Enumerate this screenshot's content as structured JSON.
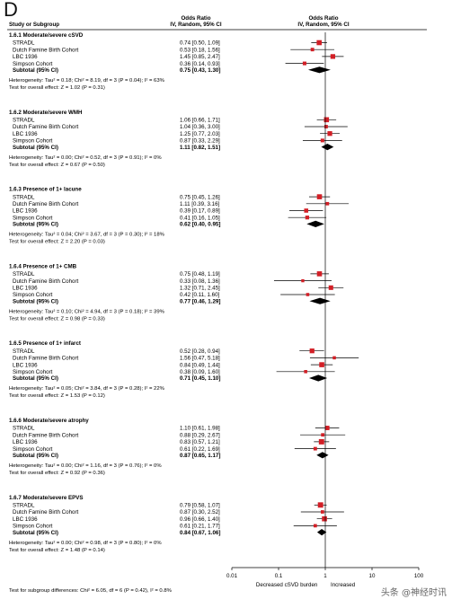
{
  "panel_label": "D",
  "header": {
    "col1_line1": "",
    "col1_line2": "Study or Subgroup",
    "col2_line1": "Odds Ratio",
    "col2_line2": "IV, Random, 95% CI",
    "col3_line1": "Odds Ratio",
    "col3_line2": "IV, Random, 95% CI"
  },
  "chart_data": {
    "type": "forest",
    "x_scale": "log",
    "xlim": [
      0.01,
      100
    ],
    "x_ticks": [
      "0.01",
      "0.1",
      "1",
      "10",
      "100"
    ],
    "x_tick_values": [
      0.01,
      0.1,
      1,
      10,
      100
    ],
    "xlabel_left": "Decreased cSVD burden",
    "xlabel_right": "Increased",
    "groups": [
      {
        "title": "1.6.1 Moderate/severe cSVD",
        "studies": [
          {
            "name": "STRADL",
            "text": "0.74 [0.50, 1.09]",
            "or": 0.74,
            "lo": 0.5,
            "hi": 1.09,
            "w": 1.0
          },
          {
            "name": "Dutch Famine Birth Cohort",
            "text": "0.53 [0.18, 1.56]",
            "or": 0.53,
            "lo": 0.18,
            "hi": 1.56,
            "w": 0.5
          },
          {
            "name": "LBC 1936",
            "text": "1.45 [0.85, 2.47]",
            "or": 1.45,
            "lo": 0.85,
            "hi": 2.47,
            "w": 0.9
          },
          {
            "name": "Simpson Cohort",
            "text": "0.36 [0.14, 0.93]",
            "or": 0.36,
            "lo": 0.14,
            "hi": 0.93,
            "w": 0.55
          }
        ],
        "subtotal": {
          "name": "Subtotal (95% CI)",
          "text": "0.75 [0.43, 1.30]",
          "or": 0.75,
          "lo": 0.43,
          "hi": 1.3
        },
        "heterogeneity": "Heterogeneity: Tau² = 0.18; Chi² = 8.19, df = 3 (P = 0.04); I² = 63%",
        "overall": "Test for overall effect: Z = 1.02 (P = 0.31)"
      },
      {
        "title": "1.6.2 Moderate/severe WMH",
        "studies": [
          {
            "name": "STRADL",
            "text": "1.06 [0.66, 1.71]",
            "or": 1.06,
            "lo": 0.66,
            "hi": 1.71,
            "w": 1.0
          },
          {
            "name": "Dutch Famine Birth Cohort",
            "text": "1.04 [0.36, 3.00]",
            "or": 1.04,
            "lo": 0.36,
            "hi": 3.0,
            "w": 0.5
          },
          {
            "name": "LBC 1936",
            "text": "1.25 [0.77, 2.03]",
            "or": 1.25,
            "lo": 0.77,
            "hi": 2.03,
            "w": 0.9
          },
          {
            "name": "Simpson Cohort",
            "text": "0.87 [0.33, 2.29]",
            "or": 0.87,
            "lo": 0.33,
            "hi": 2.29,
            "w": 0.55
          }
        ],
        "subtotal": {
          "name": "Subtotal (95% CI)",
          "text": "1.11 [0.82, 1.51]",
          "or": 1.11,
          "lo": 0.82,
          "hi": 1.51
        },
        "heterogeneity": "Heterogeneity: Tau² = 0.00; Chi² = 0.52, df = 3 (P = 0.91); I² = 0%",
        "overall": "Test for overall effect: Z = 0.67 (P = 0.50)"
      },
      {
        "title": "1.6.3 Presence of 1+ lacune",
        "studies": [
          {
            "name": "STRADL",
            "text": "0.75 [0.45, 1.26]",
            "or": 0.75,
            "lo": 0.45,
            "hi": 1.26,
            "w": 1.0
          },
          {
            "name": "Dutch Famine Birth Cohort",
            "text": "1.11 [0.39, 3.16]",
            "or": 1.11,
            "lo": 0.39,
            "hi": 3.16,
            "w": 0.45
          },
          {
            "name": "LBC 1936",
            "text": "0.39 [0.17, 0.89]",
            "or": 0.39,
            "lo": 0.17,
            "hi": 0.89,
            "w": 0.7
          },
          {
            "name": "Simpson Cohort",
            "text": "0.41 [0.16, 1.05]",
            "or": 0.41,
            "lo": 0.16,
            "hi": 1.05,
            "w": 0.6
          }
        ],
        "subtotal": {
          "name": "Subtotal (95% CI)",
          "text": "0.62 [0.40, 0.95]",
          "or": 0.62,
          "lo": 0.4,
          "hi": 0.95
        },
        "heterogeneity": "Heterogeneity: Tau² = 0.04; Chi² = 3.67, df = 3 (P = 0.30); I² = 18%",
        "overall": "Test for overall effect: Z = 2.20 (P = 0.03)"
      },
      {
        "title": "1.6.4 Presence of 1+ CMB",
        "studies": [
          {
            "name": "STRADL",
            "text": "0.75 [0.48, 1.19]",
            "or": 0.75,
            "lo": 0.48,
            "hi": 1.19,
            "w": 1.0
          },
          {
            "name": "Dutch Famine Birth Cohort",
            "text": "0.33 [0.08, 1.36]",
            "or": 0.33,
            "lo": 0.08,
            "hi": 1.36,
            "w": 0.35
          },
          {
            "name": "LBC 1936",
            "text": "1.32 [0.71, 2.45]",
            "or": 1.32,
            "lo": 0.71,
            "hi": 2.45,
            "w": 0.85
          },
          {
            "name": "Simpson Cohort",
            "text": "0.42 [0.11, 1.60]",
            "or": 0.42,
            "lo": 0.11,
            "hi": 1.6,
            "w": 0.4
          }
        ],
        "subtotal": {
          "name": "Subtotal (95% CI)",
          "text": "0.77 [0.46, 1.29]",
          "or": 0.77,
          "lo": 0.46,
          "hi": 1.29
        },
        "heterogeneity": "Heterogeneity: Tau² = 0.10; Chi² = 4.94, df = 3 (P = 0.18); I² = 39%",
        "overall": "Test for overall effect: Z = 0.98 (P = 0.33)"
      },
      {
        "title": "1.6.5 Presence of 1+ infarct",
        "studies": [
          {
            "name": "STRADL",
            "text": "0.52 [0.28, 0.94]",
            "or": 0.52,
            "lo": 0.28,
            "hi": 0.94,
            "w": 0.9
          },
          {
            "name": "Dutch Famine Birth Cohort",
            "text": "1.56 [0.47, 5.18]",
            "or": 1.56,
            "lo": 0.47,
            "hi": 5.18,
            "w": 0.4
          },
          {
            "name": "LBC 1936",
            "text": "0.84 [0.49, 1.44]",
            "or": 0.84,
            "lo": 0.49,
            "hi": 1.44,
            "w": 1.0
          },
          {
            "name": "Simpson Cohort",
            "text": "0.38 [0.09, 1.60]",
            "or": 0.38,
            "lo": 0.09,
            "hi": 1.6,
            "w": 0.4
          }
        ],
        "subtotal": {
          "name": "Subtotal (95% CI)",
          "text": "0.71 [0.45, 1.10]",
          "or": 0.71,
          "lo": 0.45,
          "hi": 1.1
        },
        "heterogeneity": "Heterogeneity: Tau² = 0.05; Chi² = 3.84, df = 3 (P = 0.28); I² = 22%",
        "overall": "Test for overall effect: Z = 1.53 (P = 0.12)"
      },
      {
        "title": "1.6.6 Moderate/severe atrophy",
        "studies": [
          {
            "name": "STRADL",
            "text": "1.10 [0.61, 1.98]",
            "or": 1.1,
            "lo": 0.61,
            "hi": 1.98,
            "w": 0.8
          },
          {
            "name": "Dutch Famine Birth Cohort",
            "text": "0.88 [0.29, 2.67]",
            "or": 0.88,
            "lo": 0.29,
            "hi": 2.67,
            "w": 0.45
          },
          {
            "name": "LBC 1936",
            "text": "0.83 [0.57, 1.21]",
            "or": 0.83,
            "lo": 0.57,
            "hi": 1.21,
            "w": 1.1
          },
          {
            "name": "Simpson Cohort",
            "text": "0.61 [0.22, 1.69]",
            "or": 0.61,
            "lo": 0.22,
            "hi": 1.69,
            "w": 0.5
          }
        ],
        "subtotal": {
          "name": "Subtotal (95% CI)",
          "text": "0.87 [0.65, 1.17]",
          "or": 0.87,
          "lo": 0.65,
          "hi": 1.17
        },
        "heterogeneity": "Heterogeneity: Tau² = 0.00; Chi² = 1.16, df = 3 (P = 0.76); I² = 0%",
        "overall": "Test for overall effect: Z = 0.92 (P = 0.36)"
      },
      {
        "title": "1.6.7 Moderate/severe EPVS",
        "studies": [
          {
            "name": "STRADL",
            "text": "0.79 [0.58, 1.07]",
            "or": 0.79,
            "lo": 0.58,
            "hi": 1.07,
            "w": 1.1
          },
          {
            "name": "Dutch Famine Birth Cohort",
            "text": "0.87 [0.30, 2.52]",
            "or": 0.87,
            "lo": 0.3,
            "hi": 2.52,
            "w": 0.45
          },
          {
            "name": "LBC 1936",
            "text": "0.96 [0.66, 1.40]",
            "or": 0.96,
            "lo": 0.66,
            "hi": 1.4,
            "w": 1.0
          },
          {
            "name": "Simpson Cohort",
            "text": "0.61 [0.21, 1.77]",
            "or": 0.61,
            "lo": 0.21,
            "hi": 1.77,
            "w": 0.45
          }
        ],
        "subtotal": {
          "name": "Subtotal (95% CI)",
          "text": "0.84 [0.67, 1.06]",
          "or": 0.84,
          "lo": 0.67,
          "hi": 1.06
        },
        "heterogeneity": "Heterogeneity: Tau² = 0.00; Chi² = 0.98, df = 3 (P = 0.80); I² = 0%",
        "overall": "Test for overall effect: Z = 1.48 (P = 0.14)"
      }
    ],
    "subgroup_test": "Test for subgroup differences: Chi² = 6.05, df = 6 (P = 0.42), I² = 0.8%",
    "colors": {
      "square": "#d21f26",
      "diamond": "#000000",
      "line": "#000000",
      "ref_line": "#000000"
    }
  },
  "watermark": "头条 @神经时讯"
}
